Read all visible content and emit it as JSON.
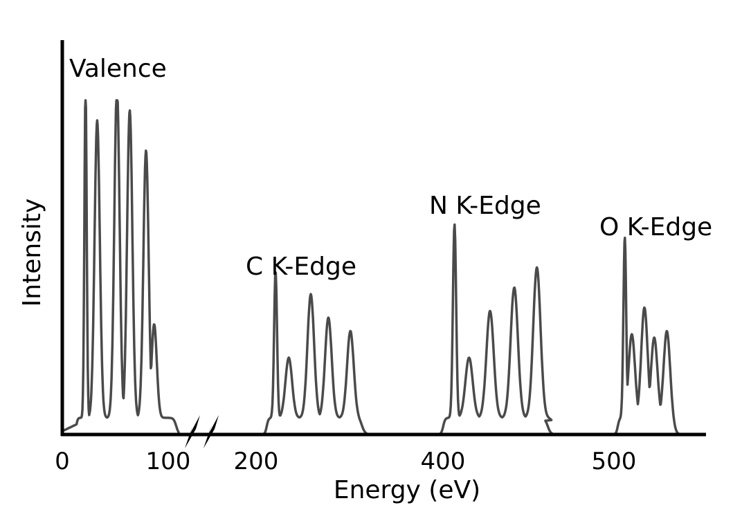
{
  "chart_data": {
    "type": "line",
    "title": "",
    "xlabel": "Energy (eV)",
    "ylabel": "Intensity",
    "x_ticks": [
      "0",
      "100",
      "200",
      "400",
      "500"
    ],
    "axis_break": "between 100 and 200",
    "yticks_shown": false,
    "grid": false,
    "line_color": "#4a4a4a",
    "annotations": [
      "Valence",
      "C K-Edge",
      "N K-Edge",
      "O K-Edge"
    ],
    "series": [
      {
        "label_ref": "Valence",
        "onset": 12,
        "offset": 98,
        "peaks": [
          {
            "x": 20,
            "y": 1.0
          },
          {
            "x": 30,
            "y": 0.89
          },
          {
            "x": 47,
            "y": 0.99
          },
          {
            "x": 58,
            "y": 0.92
          },
          {
            "x": 72,
            "y": 0.8
          },
          {
            "x": 79,
            "y": 0.28
          }
        ]
      },
      {
        "label_ref": "C K-Edge",
        "onset": 200,
        "offset": 265,
        "peaks": [
          {
            "x": 206,
            "y": 0.44
          },
          {
            "x": 215,
            "y": 0.18
          },
          {
            "x": 230,
            "y": 0.37
          },
          {
            "x": 242,
            "y": 0.3
          },
          {
            "x": 257,
            "y": 0.26
          }
        ]
      },
      {
        "label_ref": "N K-Edge",
        "onset": 383,
        "offset": 452,
        "peaks": [
          {
            "x": 390,
            "y": 0.58
          },
          {
            "x": 399,
            "y": 0.18
          },
          {
            "x": 412,
            "y": 0.32
          },
          {
            "x": 427,
            "y": 0.39
          },
          {
            "x": 441,
            "y": 0.45
          }
        ]
      },
      {
        "label_ref": "O K-Edge",
        "onset": 502,
        "offset": 542,
        "peaks": [
          {
            "x": 507,
            "y": 0.54
          },
          {
            "x": 512,
            "y": 0.25
          },
          {
            "x": 521,
            "y": 0.33
          },
          {
            "x": 528,
            "y": 0.24
          },
          {
            "x": 537,
            "y": 0.26
          }
        ]
      }
    ]
  }
}
